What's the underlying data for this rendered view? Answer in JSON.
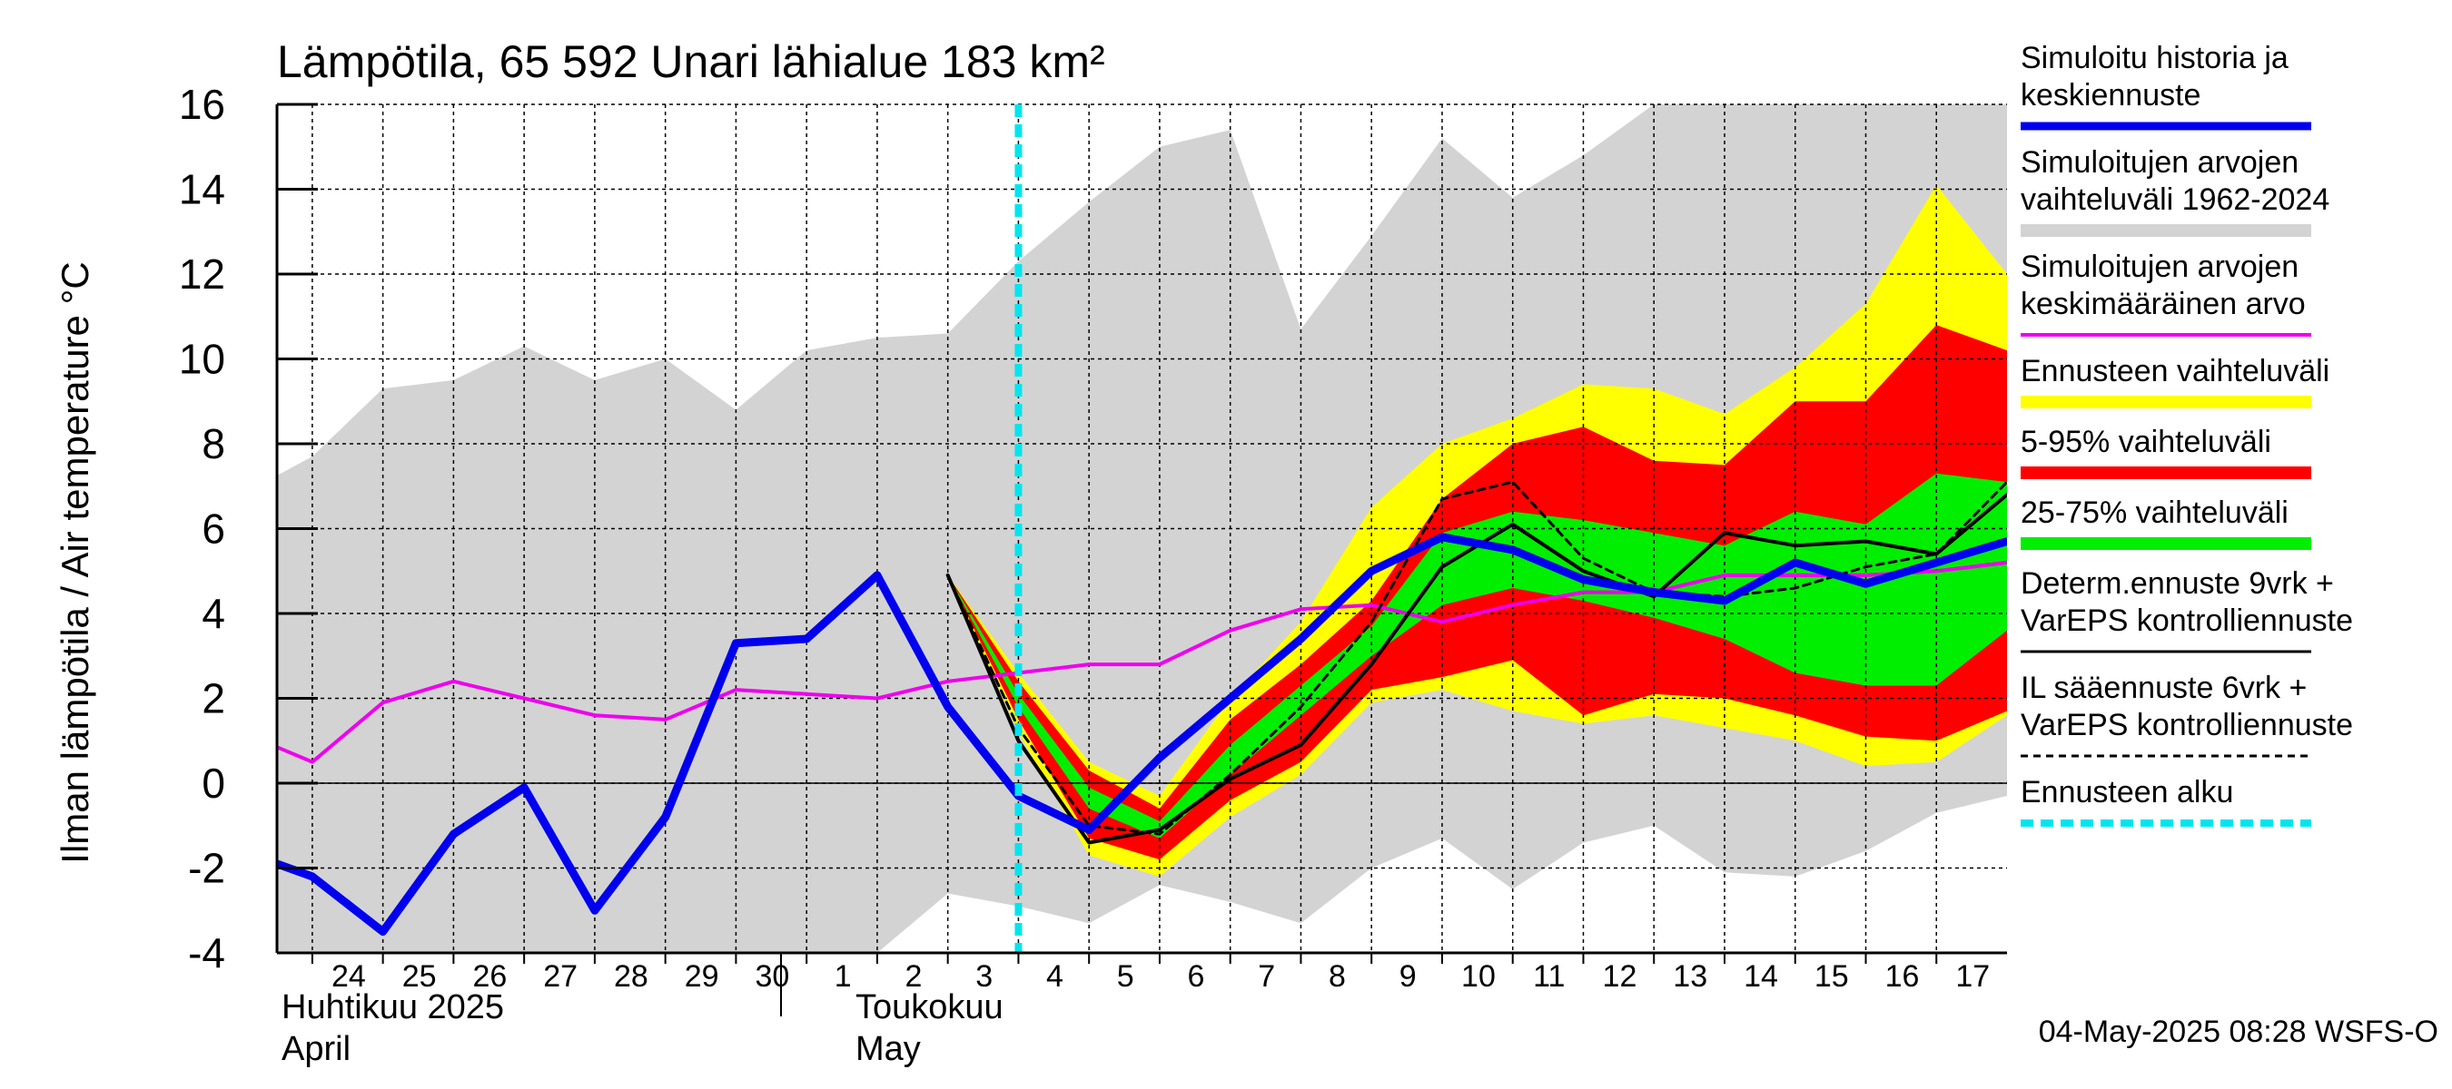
{
  "title": "Lämpötila, 65 592 Unari lähialue 183 km²",
  "ylabel": "Ilman lämpötila / Air temperature   °C",
  "timestamp": "04-May-2025 08:28 WSFS-O",
  "month_labels": [
    {
      "name": "Huhtikuu  2025",
      "name_en": "April"
    },
    {
      "name": "Toukokuu",
      "name_en": "May"
    }
  ],
  "legend": [
    {
      "label": "Simuloitu historia ja\nkeskiennuste",
      "color": "#0000ee",
      "style": "thick"
    },
    {
      "label": "Simuloitujen arvojen\nvaihteluväli 1962-2024",
      "color": "#d3d3d3",
      "style": "band"
    },
    {
      "label": "Simuloitujen arvojen\nkeskimääräinen arvo",
      "color": "#ee00ee",
      "style": "line"
    },
    {
      "label": "Ennusteen vaihteluväli",
      "color": "#ffff00",
      "style": "band"
    },
    {
      "label": "5-95% vaihteluväli",
      "color": "#ff0000",
      "style": "band"
    },
    {
      "label": "25-75% vaihteluväli",
      "color": "#00ee00",
      "style": "band"
    },
    {
      "label": "Determ.ennuste 9vrk +\nVarEPS kontrolliennuste",
      "color": "#000000",
      "style": "thin"
    },
    {
      "label": "IL sääennuste 6vrk  +\n VarEPS kontrolliennuste",
      "color": "#000000",
      "style": "dashed"
    },
    {
      "label": "Ennusteen alku",
      "color": "#00e5ee",
      "style": "dotted"
    }
  ],
  "chart_data": {
    "type": "line",
    "title": "Lämpötila, 65 592 Unari lähialue 183 km²",
    "xlabel": "",
    "ylabel": "Ilman lämpötila / Air temperature   °C",
    "ylim": [
      -4,
      16
    ],
    "yticks": [
      -4,
      -2,
      0,
      2,
      4,
      6,
      8,
      10,
      12,
      14,
      16
    ],
    "x_tick_labels": [
      "24",
      "25",
      "26",
      "27",
      "28",
      "29",
      "30",
      "1",
      "2",
      "3",
      "4",
      "5",
      "6",
      "7",
      "8",
      "9",
      "10",
      "11",
      "12",
      "13",
      "14",
      "15",
      "16",
      "17"
    ],
    "x_dates": [
      "2025-04-24",
      "2025-04-25",
      "2025-04-26",
      "2025-04-27",
      "2025-04-28",
      "2025-04-29",
      "2025-04-30",
      "2025-05-01",
      "2025-05-02",
      "2025-05-03",
      "2025-05-04",
      "2025-05-05",
      "2025-05-06",
      "2025-05-07",
      "2025-05-08",
      "2025-05-09",
      "2025-05-10",
      "2025-05-11",
      "2025-05-12",
      "2025-05-13",
      "2025-05-14",
      "2025-05-15",
      "2025-05-16",
      "2025-05-17"
    ],
    "forecast_start": "2025-05-04",
    "grid": true,
    "series": [
      {
        "name": "Simuloitujen arvojen vaihteluväli 1962-2024",
        "kind": "band",
        "color": "#d3d3d3",
        "x": [
          "2025-04-23",
          "2025-04-24",
          "2025-04-25",
          "2025-04-26",
          "2025-04-27",
          "2025-04-28",
          "2025-04-29",
          "2025-04-30",
          "2025-05-01",
          "2025-05-02",
          "2025-05-03",
          "2025-05-04",
          "2025-05-05",
          "2025-05-06",
          "2025-05-07",
          "2025-05-08",
          "2025-05-09",
          "2025-05-10",
          "2025-05-11",
          "2025-05-12",
          "2025-05-13",
          "2025-05-14",
          "2025-05-15",
          "2025-05-16",
          "2025-05-17",
          "2025-05-18"
        ],
        "upper": [
          6.8,
          7.7,
          9.3,
          9.5,
          10.3,
          9.5,
          10.0,
          8.8,
          10.2,
          10.5,
          10.6,
          12.3,
          13.7,
          15.0,
          15.4,
          10.7,
          12.9,
          15.2,
          13.8,
          14.8,
          16.0,
          16.0,
          16.0,
          16.0,
          16.0,
          16.0
        ],
        "lower": [
          -4.5,
          -4.5,
          -4.5,
          -4.5,
          -4.5,
          -4.5,
          -4.5,
          -4.5,
          -4.5,
          -4.5,
          -2.6,
          -2.9,
          -3.3,
          -2.4,
          -2.8,
          -3.3,
          -2.0,
          -1.3,
          -2.5,
          -1.4,
          -1.0,
          -2.1,
          -2.2,
          -1.6,
          -0.7,
          -0.3
        ]
      },
      {
        "name": "Ennusteen vaihteluväli",
        "kind": "band",
        "color": "#ffff00",
        "x": [
          "2025-05-03",
          "2025-05-04",
          "2025-05-05",
          "2025-05-06",
          "2025-05-07",
          "2025-05-08",
          "2025-05-09",
          "2025-05-10",
          "2025-05-11",
          "2025-05-12",
          "2025-05-13",
          "2025-05-14",
          "2025-05-15",
          "2025-05-16",
          "2025-05-17",
          "2025-05-18"
        ],
        "upper": [
          4.9,
          2.6,
          0.5,
          -0.3,
          2.0,
          3.8,
          6.5,
          8.0,
          8.6,
          9.4,
          9.3,
          8.7,
          9.8,
          11.3,
          14.1,
          12.0
        ],
        "lower": [
          4.9,
          1.2,
          -1.7,
          -2.2,
          -0.8,
          0.2,
          1.9,
          2.2,
          1.7,
          1.4,
          1.6,
          1.3,
          1.0,
          0.4,
          0.5,
          1.6
        ]
      },
      {
        "name": "5-95% vaihteluväli",
        "kind": "band",
        "color": "#ff0000",
        "x": [
          "2025-05-03",
          "2025-05-04",
          "2025-05-05",
          "2025-05-06",
          "2025-05-07",
          "2025-05-08",
          "2025-05-09",
          "2025-05-10",
          "2025-05-11",
          "2025-05-12",
          "2025-05-13",
          "2025-05-14",
          "2025-05-15",
          "2025-05-16",
          "2025-05-17",
          "2025-05-18"
        ],
        "upper": [
          4.9,
          2.4,
          0.3,
          -0.6,
          1.5,
          2.8,
          4.3,
          6.7,
          8.0,
          8.4,
          7.6,
          7.5,
          9.0,
          9.0,
          10.8,
          10.2
        ],
        "lower": [
          4.9,
          1.5,
          -1.3,
          -1.8,
          -0.4,
          0.5,
          2.2,
          2.5,
          2.9,
          1.6,
          2.1,
          2.0,
          1.6,
          1.1,
          1.0,
          1.7
        ]
      },
      {
        "name": "25-75% vaihteluväli",
        "kind": "band",
        "color": "#00ee00",
        "x": [
          "2025-05-03",
          "2025-05-04",
          "2025-05-05",
          "2025-05-06",
          "2025-05-07",
          "2025-05-08",
          "2025-05-09",
          "2025-05-10",
          "2025-05-11",
          "2025-05-12",
          "2025-05-13",
          "2025-05-14",
          "2025-05-15",
          "2025-05-16",
          "2025-05-17",
          "2025-05-18"
        ],
        "upper": [
          4.9,
          2.1,
          -0.1,
          -0.9,
          0.9,
          2.3,
          3.7,
          5.9,
          6.4,
          6.2,
          5.9,
          5.6,
          6.4,
          6.1,
          7.3,
          7.1
        ],
        "lower": [
          4.9,
          1.8,
          -0.6,
          -1.3,
          0.2,
          1.6,
          3.0,
          4.2,
          4.6,
          4.3,
          3.9,
          3.4,
          2.6,
          2.3,
          2.3,
          3.6
        ]
      },
      {
        "name": "Simuloitujen arvojen keskimääräinen arvo",
        "kind": "line",
        "color": "#ee00ee",
        "x": [
          "2025-04-23",
          "2025-04-24",
          "2025-04-25",
          "2025-04-26",
          "2025-04-27",
          "2025-04-28",
          "2025-04-29",
          "2025-04-30",
          "2025-05-01",
          "2025-05-02",
          "2025-05-03",
          "2025-05-04",
          "2025-05-05",
          "2025-05-06",
          "2025-05-07",
          "2025-05-08",
          "2025-05-09",
          "2025-05-10",
          "2025-05-11",
          "2025-05-12",
          "2025-05-13",
          "2025-05-14",
          "2025-05-15",
          "2025-05-16",
          "2025-05-17",
          "2025-05-18"
        ],
        "y": [
          1.2,
          0.5,
          1.9,
          2.4,
          2.0,
          1.6,
          1.5,
          2.2,
          2.1,
          2.0,
          2.4,
          2.6,
          2.8,
          2.8,
          3.6,
          4.1,
          4.2,
          3.8,
          4.2,
          4.5,
          4.5,
          4.9,
          4.9,
          4.9,
          5.0,
          5.2
        ]
      },
      {
        "name": "Determ.ennuste 9vrk + VarEPS kontrolliennuste",
        "kind": "line",
        "color": "#000000",
        "x": [
          "2025-05-03",
          "2025-05-04",
          "2025-05-05",
          "2025-05-06",
          "2025-05-07",
          "2025-05-08",
          "2025-05-09",
          "2025-05-10",
          "2025-05-11",
          "2025-05-12",
          "2025-05-13",
          "2025-05-14",
          "2025-05-15",
          "2025-05-16",
          "2025-05-17",
          "2025-05-18"
        ],
        "y": [
          4.9,
          1.0,
          -1.4,
          -1.1,
          0.1,
          0.9,
          2.8,
          5.1,
          6.1,
          5.0,
          4.4,
          5.9,
          5.6,
          5.7,
          5.4,
          6.8
        ]
      },
      {
        "name": "IL sääennuste 6vrk + VarEPS kontrolliennuste",
        "kind": "dashed",
        "color": "#000000",
        "x": [
          "2025-05-03",
          "2025-05-04",
          "2025-05-05",
          "2025-05-06",
          "2025-05-07",
          "2025-05-08",
          "2025-05-09",
          "2025-05-10",
          "2025-05-11",
          "2025-05-12",
          "2025-05-13",
          "2025-05-14",
          "2025-05-15",
          "2025-05-16",
          "2025-05-17",
          "2025-05-18"
        ],
        "y": [
          4.9,
          1.3,
          -1.0,
          -1.2,
          0.2,
          1.8,
          3.8,
          6.7,
          7.1,
          5.3,
          4.5,
          4.4,
          4.6,
          5.1,
          5.4,
          7.1
        ]
      },
      {
        "name": "Simuloitu historia ja keskiennuste",
        "kind": "thick",
        "color": "#0000ee",
        "x": [
          "2025-04-23",
          "2025-04-24",
          "2025-04-25",
          "2025-04-26",
          "2025-04-27",
          "2025-04-28",
          "2025-04-29",
          "2025-04-30",
          "2025-05-01",
          "2025-05-02",
          "2025-05-03",
          "2025-05-04",
          "2025-05-05",
          "2025-05-06",
          "2025-05-07",
          "2025-05-08",
          "2025-05-09",
          "2025-05-10",
          "2025-05-11",
          "2025-05-12",
          "2025-05-13",
          "2025-05-14",
          "2025-05-15",
          "2025-05-16",
          "2025-05-17",
          "2025-05-18"
        ],
        "y": [
          -1.6,
          -2.2,
          -3.5,
          -1.2,
          -0.1,
          -3.0,
          -0.8,
          3.3,
          3.4,
          4.9,
          1.8,
          -0.3,
          -1.1,
          0.6,
          2.0,
          3.4,
          5.0,
          5.8,
          5.5,
          4.8,
          4.5,
          4.3,
          5.2,
          4.7,
          5.2,
          5.7
        ]
      }
    ]
  }
}
